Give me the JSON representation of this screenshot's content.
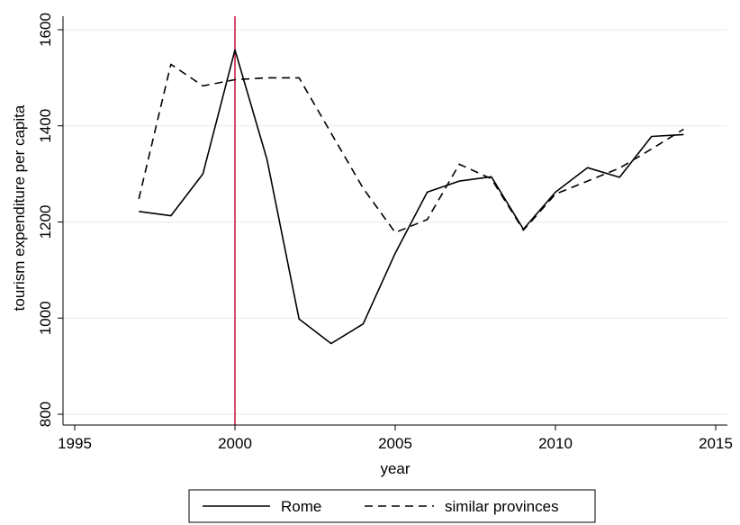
{
  "chart_data": {
    "type": "line",
    "title": "",
    "xlabel": "year",
    "ylabel": "tourism expenditure per capita",
    "xlim": [
      1995,
      2015
    ],
    "ylim": [
      800,
      1600
    ],
    "xticks": [
      1995,
      2000,
      2005,
      2010,
      2015
    ],
    "yticks": [
      800,
      1000,
      1200,
      1400,
      1600
    ],
    "grid": "horizontal",
    "reference_line": {
      "x": 2000,
      "color": "#cc1f4a"
    },
    "legend": {
      "placement": "bottom"
    },
    "x": [
      1997,
      1998,
      1999,
      2000,
      2001,
      2002,
      2003,
      2004,
      2005,
      2006,
      2007,
      2008,
      2009,
      2010,
      2011,
      2012,
      2013,
      2014
    ],
    "series": [
      {
        "name": "Rome",
        "style": "solid",
        "color": "#000000",
        "values": [
          1222,
          1213,
          1300,
          1558,
          1330,
          998,
          947,
          988,
          1135,
          1262,
          1285,
          1294,
          1185,
          1262,
          1313,
          1293,
          1378,
          1382
        ]
      },
      {
        "name": "similar provinces",
        "style": "dashed",
        "color": "#000000",
        "values": [
          1248,
          1528,
          1483,
          1496,
          1500,
          1500,
          1385,
          1270,
          1178,
          1205,
          1320,
          1290,
          1183,
          1258,
          1285,
          1312,
          1352,
          1393
        ]
      }
    ]
  }
}
